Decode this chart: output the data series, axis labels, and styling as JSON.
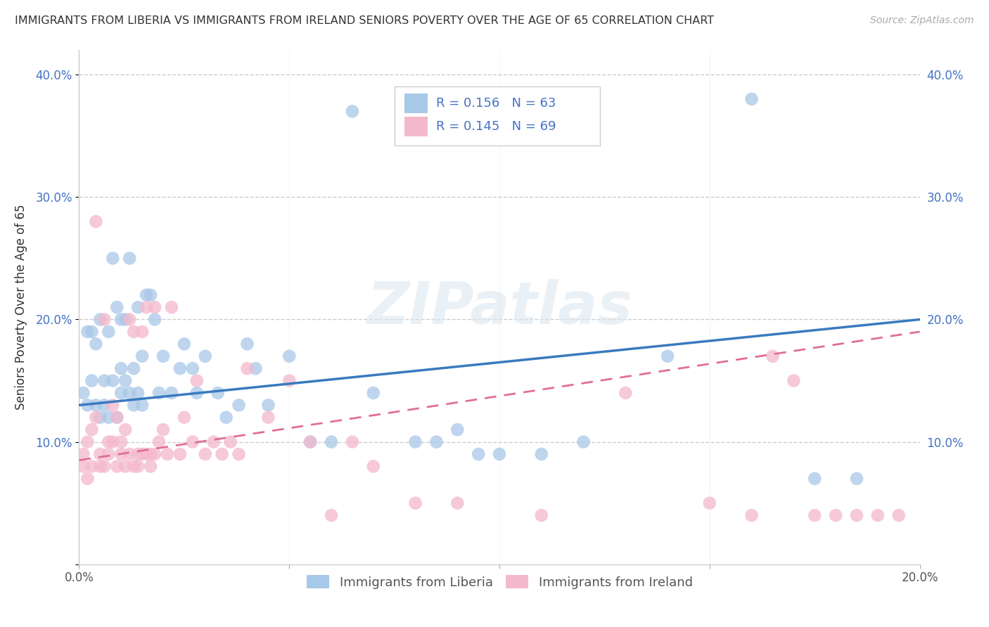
{
  "title": "IMMIGRANTS FROM LIBERIA VS IMMIGRANTS FROM IRELAND SENIORS POVERTY OVER THE AGE OF 65 CORRELATION CHART",
  "source": "Source: ZipAtlas.com",
  "ylabel": "Seniors Poverty Over the Age of 65",
  "watermark": "ZIPatlas",
  "legend_liberia": "Immigrants from Liberia",
  "legend_ireland": "Immigrants from Ireland",
  "R_liberia": 0.156,
  "N_liberia": 63,
  "R_ireland": 0.145,
  "N_ireland": 69,
  "color_liberia": "#a8c8e8",
  "color_ireland": "#f4b8cc",
  "line_color_liberia": "#3a7abf",
  "line_color_ireland": "#e07090",
  "xlim": [
    0.0,
    0.2
  ],
  "ylim": [
    0.0,
    0.42
  ],
  "lib_line_x0": 0.0,
  "lib_line_y0": 0.13,
  "lib_line_x1": 0.2,
  "lib_line_y1": 0.2,
  "ire_line_x0": 0.0,
  "ire_line_y0": 0.085,
  "ire_line_x1": 0.2,
  "ire_line_y1": 0.19,
  "liberia_x": [
    0.001,
    0.002,
    0.002,
    0.003,
    0.003,
    0.004,
    0.004,
    0.005,
    0.005,
    0.006,
    0.006,
    0.007,
    0.007,
    0.008,
    0.008,
    0.009,
    0.009,
    0.01,
    0.01,
    0.01,
    0.011,
    0.011,
    0.012,
    0.012,
    0.013,
    0.013,
    0.014,
    0.014,
    0.015,
    0.015,
    0.016,
    0.017,
    0.018,
    0.019,
    0.02,
    0.022,
    0.024,
    0.025,
    0.027,
    0.028,
    0.03,
    0.033,
    0.035,
    0.038,
    0.04,
    0.042,
    0.045,
    0.05,
    0.055,
    0.06,
    0.065,
    0.07,
    0.08,
    0.085,
    0.09,
    0.095,
    0.1,
    0.11,
    0.12,
    0.14,
    0.16,
    0.175,
    0.185
  ],
  "liberia_y": [
    0.14,
    0.13,
    0.19,
    0.15,
    0.19,
    0.13,
    0.18,
    0.12,
    0.2,
    0.15,
    0.13,
    0.19,
    0.12,
    0.25,
    0.15,
    0.21,
    0.12,
    0.14,
    0.2,
    0.16,
    0.2,
    0.15,
    0.14,
    0.25,
    0.13,
    0.16,
    0.14,
    0.21,
    0.13,
    0.17,
    0.22,
    0.22,
    0.2,
    0.14,
    0.17,
    0.14,
    0.16,
    0.18,
    0.16,
    0.14,
    0.17,
    0.14,
    0.12,
    0.13,
    0.18,
    0.16,
    0.13,
    0.17,
    0.1,
    0.1,
    0.37,
    0.14,
    0.1,
    0.1,
    0.11,
    0.09,
    0.09,
    0.09,
    0.1,
    0.17,
    0.38,
    0.07,
    0.07
  ],
  "ireland_x": [
    0.001,
    0.001,
    0.002,
    0.002,
    0.003,
    0.003,
    0.004,
    0.004,
    0.005,
    0.005,
    0.006,
    0.006,
    0.007,
    0.007,
    0.008,
    0.008,
    0.009,
    0.009,
    0.01,
    0.01,
    0.011,
    0.011,
    0.012,
    0.012,
    0.013,
    0.013,
    0.014,
    0.014,
    0.015,
    0.015,
    0.016,
    0.016,
    0.017,
    0.017,
    0.018,
    0.018,
    0.019,
    0.02,
    0.021,
    0.022,
    0.024,
    0.025,
    0.027,
    0.028,
    0.03,
    0.032,
    0.034,
    0.036,
    0.038,
    0.04,
    0.045,
    0.05,
    0.055,
    0.06,
    0.065,
    0.07,
    0.08,
    0.09,
    0.11,
    0.13,
    0.15,
    0.16,
    0.165,
    0.17,
    0.175,
    0.18,
    0.185,
    0.19,
    0.195
  ],
  "ireland_y": [
    0.09,
    0.08,
    0.1,
    0.07,
    0.11,
    0.08,
    0.12,
    0.28,
    0.09,
    0.08,
    0.2,
    0.08,
    0.09,
    0.1,
    0.13,
    0.1,
    0.08,
    0.12,
    0.09,
    0.1,
    0.08,
    0.11,
    0.09,
    0.2,
    0.08,
    0.19,
    0.09,
    0.08,
    0.09,
    0.19,
    0.09,
    0.21,
    0.08,
    0.09,
    0.21,
    0.09,
    0.1,
    0.11,
    0.09,
    0.21,
    0.09,
    0.12,
    0.1,
    0.15,
    0.09,
    0.1,
    0.09,
    0.1,
    0.09,
    0.16,
    0.12,
    0.15,
    0.1,
    0.04,
    0.1,
    0.08,
    0.05,
    0.05,
    0.04,
    0.14,
    0.05,
    0.04,
    0.17,
    0.15,
    0.04,
    0.04,
    0.04,
    0.04,
    0.04
  ]
}
